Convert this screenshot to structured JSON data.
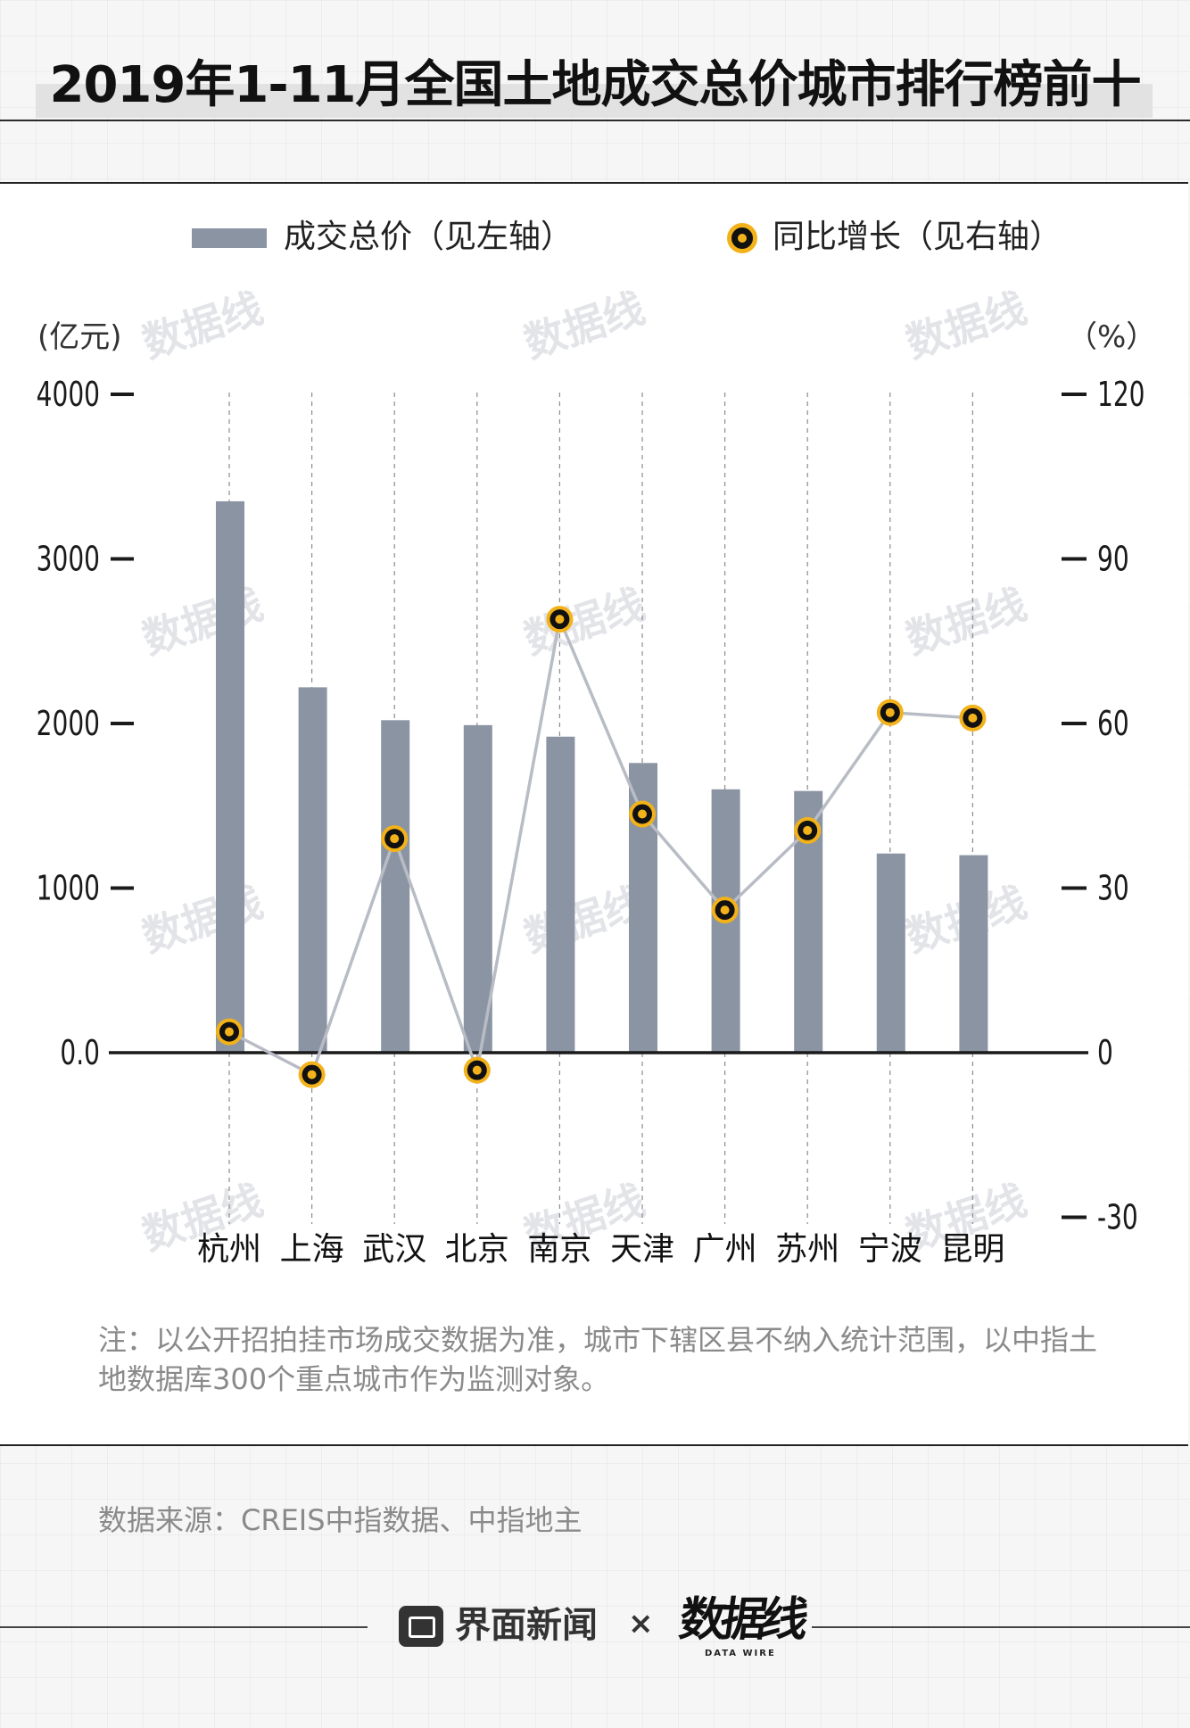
{
  "title": "2019年1-11月全国土地成交总价城市排行榜前十",
  "chart_data": {
    "type": "bar+line",
    "categories": [
      "杭州",
      "上海",
      "武汉",
      "北京",
      "南京",
      "天津",
      "广州",
      "苏州",
      "宁波",
      "昆明"
    ],
    "series": [
      {
        "name": "成交总价（见左轴）",
        "kind": "bar",
        "axis": "left",
        "values": [
          3350,
          2220,
          2020,
          1990,
          1920,
          1760,
          1600,
          1590,
          1210,
          1200
        ]
      },
      {
        "name": "同比增长（见右轴）",
        "kind": "line",
        "axis": "right",
        "values": [
          3.8,
          -4.0,
          39.0,
          -3.2,
          79.0,
          43.5,
          26.0,
          40.5,
          62.0,
          61.0
        ]
      }
    ],
    "left_axis": {
      "unit": "(亿元)",
      "ylim": [
        0,
        4000
      ],
      "ticks": [
        4000,
        3000,
        2000,
        1000,
        0
      ],
      "tick_labels": [
        "4000",
        "3000",
        "2000",
        "1000",
        "0.0"
      ]
    },
    "right_axis": {
      "unit": "（%）",
      "ylim": [
        -30,
        120
      ],
      "ticks": [
        120,
        90,
        60,
        30,
        0,
        -30
      ],
      "tick_labels": [
        "120",
        "90",
        "60",
        "30",
        "0",
        "-30"
      ]
    },
    "colors": {
      "bar": "#8a94a3",
      "line": "#b8bcc4",
      "marker_ring": "#f3b21a",
      "marker_core": "#111111"
    },
    "watermark": "数据线 DATA WIRE"
  },
  "legend": {
    "bar_label": "成交总价（见左轴）",
    "line_label": "同比增长（见右轴）"
  },
  "note": "注：以公开招拍挂市场成交数据为准，城市下辖区县不纳入统计范围，以中指土地数据库300个重点城市作为监测对象。",
  "source": "数据来源：CREIS中指数据、中指地主",
  "footer": {
    "brand": "界面新闻",
    "times": "×",
    "logo": "数据线",
    "logo_sub": "DATA WIRE"
  }
}
